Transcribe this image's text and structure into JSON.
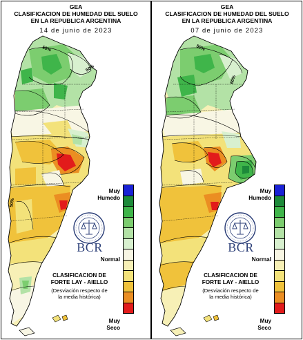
{
  "panels": [
    {
      "header": {
        "line1": "GEA",
        "line2": "CLASIFICACION DE HUMEDAD DEL SUELO",
        "line3": "EN LA REPUBLICA ARGENTINA",
        "date": "14 de junio de 2023"
      },
      "contour_labels": [
        "50%",
        "50%",
        "50%"
      ],
      "legend": {
        "top_label_line1": "Muy",
        "top_label_line2": "Humedo",
        "middle_label": "Normal",
        "bottom_label_line1": "Muy",
        "bottom_label_line2": "Seco"
      },
      "logo_text": "BCR",
      "classification": {
        "line1": "CLASIFICACION DE",
        "line2": "FORTE LAY - AIELLO",
        "note_line1": "(Desviación respecto de",
        "note_line2": "la media histórica)"
      }
    },
    {
      "header": {
        "line1": "GEA",
        "line2": "CLASIFICACION DE HUMEDAD DEL SUELO",
        "line3": "EN LA REPUBLICA ARGENTINA",
        "date": "07 de junio de 2023"
      },
      "contour_labels": [
        "50%",
        "60%"
      ],
      "legend": {
        "top_label_line1": "Muy",
        "top_label_line2": "Humedo",
        "middle_label": "Normal",
        "bottom_label_line1": "Muy",
        "bottom_label_line2": "Seco"
      },
      "logo_text": "BCR",
      "classification": {
        "line1": "CLASIFICACION DE",
        "line2": "FORTE LAY - AIELLO",
        "note_line1": "(Desviación respecto de",
        "note_line2": "la media histórica)"
      }
    }
  ],
  "legend_scale": {
    "colors": [
      "#1a22d6",
      "#1d8a3a",
      "#3fb54a",
      "#7ccd6f",
      "#b3e2a6",
      "#d8f0cf",
      "#f8f6e4",
      "#f7f0b6",
      "#f3e27a",
      "#f0c23b",
      "#eb8e22",
      "#e21b1b"
    ],
    "from": "Muy Humedo",
    "to": "Muy Seco"
  }
}
